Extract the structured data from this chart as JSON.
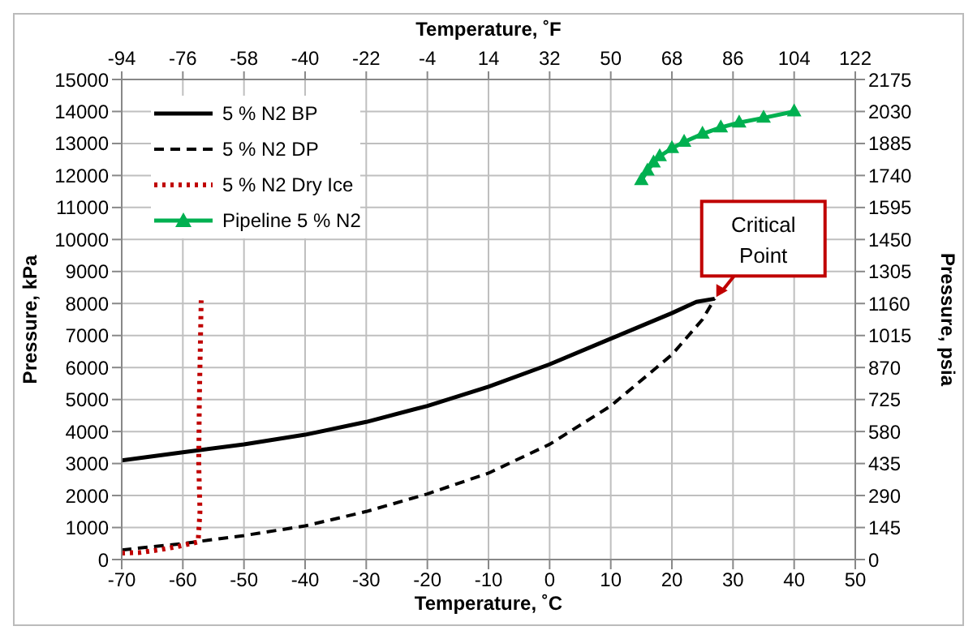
{
  "chart_data": {
    "type": "line",
    "xlabel": "Temperature, ˚C",
    "ylabel": "Pressure, kPa",
    "x2label": "Temperature, ˚F",
    "y2label": "Pressure, psia",
    "xlim": [
      -70,
      50
    ],
    "xticks": [
      -70,
      -60,
      -50,
      -40,
      -30,
      -20,
      -10,
      0,
      10,
      20,
      30,
      40,
      50
    ],
    "x2lim": [
      -94,
      122
    ],
    "x2ticks": [
      -94,
      -76,
      -58,
      -40,
      -22,
      -4,
      14,
      32,
      50,
      68,
      86,
      104,
      122
    ],
    "ylim": [
      0,
      15000
    ],
    "yticks": [
      0,
      1000,
      2000,
      3000,
      4000,
      5000,
      6000,
      7000,
      8000,
      9000,
      10000,
      11000,
      12000,
      13000,
      14000,
      15000
    ],
    "y2lim": [
      0,
      2175
    ],
    "y2ticks": [
      0,
      145,
      290,
      435,
      580,
      725,
      870,
      1015,
      1160,
      1305,
      1450,
      1595,
      1740,
      1885,
      2030,
      2175
    ],
    "grid": true,
    "legend": "top left",
    "series": [
      {
        "name": "5 % N2 BP",
        "color": "#000000",
        "line_style": "solid",
        "marker": "none",
        "x": [
          -70,
          -60,
          -50,
          -40,
          -30,
          -20,
          -10,
          0,
          10,
          20,
          24,
          27
        ],
        "values": [
          3100,
          3350,
          3600,
          3900,
          4300,
          4800,
          5400,
          6100,
          6900,
          7700,
          8050,
          8150
        ]
      },
      {
        "name": "5 % N2 DP",
        "color": "#000000",
        "line_style": "dashed",
        "marker": "none",
        "x": [
          -70,
          -60,
          -50,
          -40,
          -30,
          -20,
          -10,
          0,
          10,
          20,
          25,
          27
        ],
        "values": [
          300,
          500,
          750,
          1050,
          1500,
          2050,
          2700,
          3600,
          4800,
          6400,
          7500,
          8150
        ]
      },
      {
        "name": "5 % N2 Dry Ice",
        "color": "#c00000",
        "line_style": "dotted",
        "marker": "none",
        "x": [
          -70,
          -67,
          -64,
          -61,
          -57.5,
          -57.2,
          -57.4,
          -57.3,
          -57
        ],
        "values": [
          200,
          220,
          300,
          400,
          550,
          1500,
          3000,
          5000,
          8100
        ]
      },
      {
        "name": "Pipeline 5 % N2",
        "color": "#00b050",
        "line_style": "solid",
        "marker": "triangle",
        "x": [
          15,
          16,
          17,
          18,
          20,
          22,
          25,
          28,
          31,
          35,
          40
        ],
        "values": [
          11850,
          12150,
          12400,
          12600,
          12850,
          13050,
          13300,
          13500,
          13650,
          13800,
          14000
        ]
      }
    ],
    "annotations": [
      {
        "text": "Critical Point",
        "x": 27,
        "y": 8150
      }
    ]
  }
}
